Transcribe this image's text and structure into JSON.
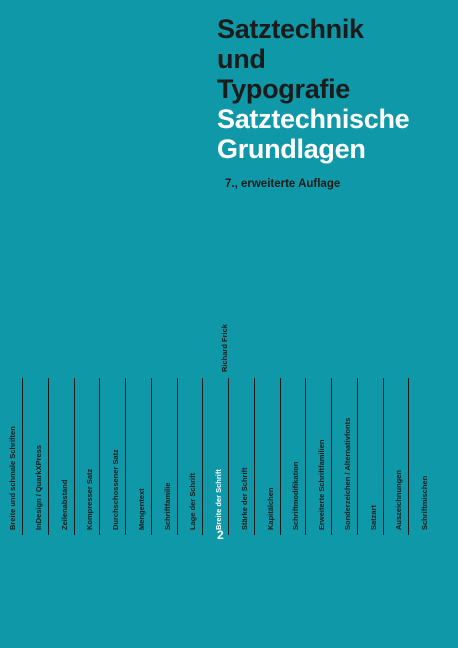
{
  "cover": {
    "title_lines": [
      "Satztechnik",
      "und",
      "Typografie"
    ],
    "subtitle_lines": [
      "Satztechnische",
      "Grundlagen"
    ],
    "edition": "7., erweiterte Auflage",
    "author": "Richard Frick",
    "volume_number": "2",
    "topics": [
      "Breite und schmale Schriften",
      "InDesign / QuarkXPress",
      "Zeilenabstand",
      "Kompresser Satz",
      "Durchschossener Satz",
      "Mengentext",
      "Schriftfamilie",
      "Lage der Schrift",
      "Breite der Schrift",
      "Stärke der Schrift",
      "Kapitälchen",
      "Schriftmodifikation",
      "Erweiterte Schriftfamilien",
      "Sonderzeichen / Alternativfonts",
      "Satzart",
      "Auszeichnungen",
      "Schriftmischen"
    ],
    "highlighted_topic_index": 8,
    "colors": {
      "background": "#0f98a8",
      "text_dark": "#1b1b1b",
      "text_light": "#ffffff"
    }
  }
}
